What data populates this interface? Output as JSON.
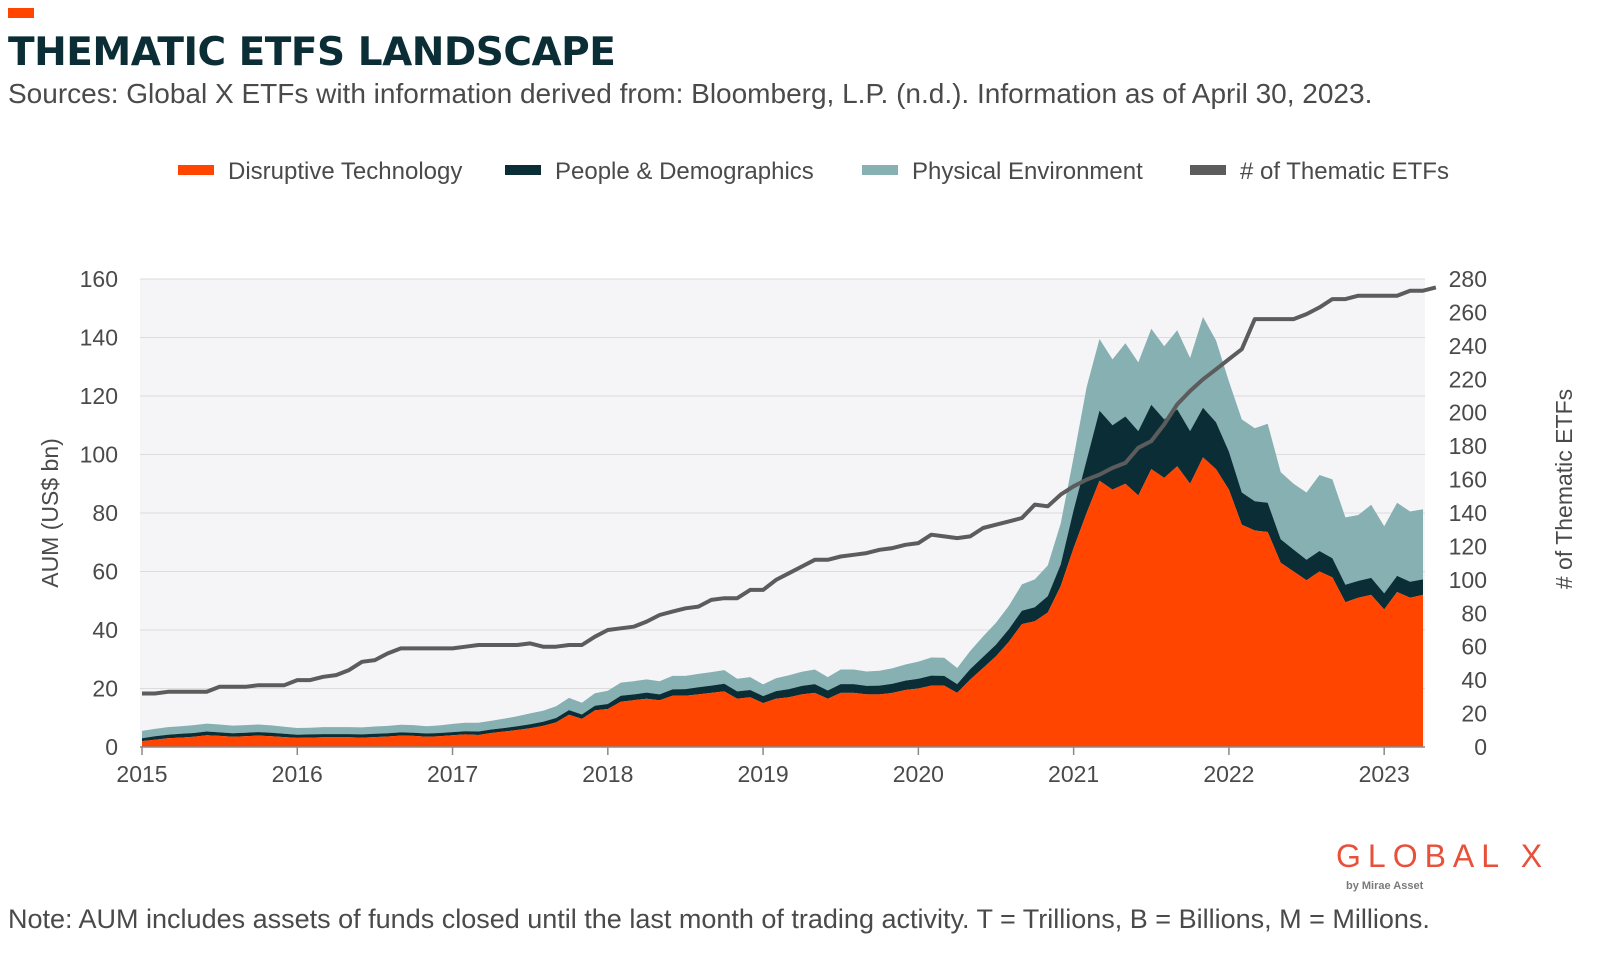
{
  "header": {
    "title": "THEMATIC ETFS LANDSCAPE",
    "subtitle": "Sources: Global X ETFs with information derived from: Bloomberg, L.P. (n.d.). Information as of April 30, 2023."
  },
  "footer": {
    "note": "Note: AUM includes assets of funds closed until the last month of trading activity. T = Trillions, B = Billions, M = Millions.",
    "logo_main": "GLOBAL X",
    "logo_sub": "by Mirae Asset"
  },
  "colors": {
    "accent": "#ff4500",
    "disruptive": "#ff4500",
    "people": "#0b2e36",
    "physical": "#86b0b1",
    "count_line": "#5c5c5c",
    "plot_bg": "#f5f5f7",
    "grid": "#dcdcdc"
  },
  "chart_data": {
    "type": "area",
    "stacked": true,
    "x_start": "2015-01",
    "x_end": "2023-04",
    "frequency": "monthly",
    "xlabel": "",
    "ylabel": "AUM (US$ bn)",
    "ylim": [
      0,
      160
    ],
    "yticks": [
      0,
      20,
      40,
      60,
      80,
      100,
      120,
      140,
      160
    ],
    "y2label": "# of Thematic ETFs",
    "y2lim": [
      0,
      280
    ],
    "y2ticks": [
      0,
      20,
      40,
      60,
      80,
      100,
      120,
      140,
      160,
      180,
      200,
      220,
      240,
      260,
      280
    ],
    "xticks": [
      "2015",
      "2016",
      "2017",
      "2018",
      "2019",
      "2020",
      "2021",
      "2022",
      "2023"
    ],
    "grid": "horizontal",
    "legend_position": "top",
    "series": [
      {
        "name": "Disruptive Technology",
        "kind": "area",
        "axis": "left",
        "color": "#ff4500",
        "values": [
          2,
          2.5,
          3,
          3.2,
          3.5,
          4,
          3.8,
          3.5,
          3.7,
          3.9,
          3.7,
          3.4,
          3.1,
          3.2,
          3.3,
          3.3,
          3.3,
          3.2,
          3.4,
          3.6,
          3.9,
          3.8,
          3.5,
          3.7,
          4,
          4.3,
          4.1,
          4.8,
          5.3,
          5.8,
          6.4,
          7.2,
          8.4,
          11,
          9.6,
          12.5,
          13,
          15.5,
          16,
          16.5,
          16,
          17.5,
          17.5,
          18,
          18.5,
          19,
          16.5,
          17,
          15,
          16.5,
          17,
          18,
          18.5,
          16.5,
          18.5,
          18.5,
          18,
          18,
          18.5,
          19.5,
          20,
          21,
          21,
          18.5,
          23,
          27,
          31,
          36,
          42,
          43,
          46,
          55,
          68,
          80,
          91,
          88,
          90,
          86,
          95,
          92,
          96,
          90,
          99,
          95,
          88,
          76,
          74,
          73.5,
          63,
          60,
          57,
          60,
          58,
          49.5,
          51,
          52,
          47,
          53,
          51,
          52,
          48
        ]
      },
      {
        "name": "People & Demographics",
        "kind": "area",
        "axis": "left",
        "color": "#0b2e36",
        "values": [
          1,
          1.2,
          1.2,
          1.3,
          1.3,
          1.3,
          1.2,
          1.2,
          1.2,
          1.2,
          1.2,
          1.1,
          1.1,
          1.1,
          1.1,
          1.1,
          1.1,
          1.1,
          1.1,
          1.1,
          1.1,
          1.1,
          1.1,
          1.1,
          1.1,
          1.1,
          1.2,
          1.2,
          1.2,
          1.3,
          1.4,
          1.4,
          1.5,
          1.6,
          1.5,
          1.6,
          1.7,
          2,
          2,
          2.1,
          2,
          2.2,
          2.3,
          2.4,
          2.5,
          2.6,
          2.5,
          2.5,
          2.4,
          2.6,
          2.8,
          2.9,
          3,
          2.8,
          3,
          3,
          2.9,
          3,
          3.1,
          3.2,
          3.3,
          3.4,
          3.3,
          3,
          3.6,
          3.8,
          4,
          4.3,
          4.6,
          4.8,
          5.6,
          7.4,
          13,
          18,
          24,
          22,
          23,
          22,
          22,
          20,
          19.5,
          18,
          17,
          16,
          13,
          11,
          10,
          10,
          8,
          7.5,
          7,
          7,
          6.5,
          6,
          5.8,
          5.8,
          5.5,
          5.5,
          5.5,
          5.3,
          5
        ]
      },
      {
        "name": "Physical Environment",
        "kind": "area",
        "axis": "left",
        "color": "#86b0b1",
        "values": [
          2.5,
          2.5,
          2.6,
          2.6,
          2.7,
          2.7,
          2.7,
          2.6,
          2.6,
          2.6,
          2.5,
          2.4,
          2.3,
          2.3,
          2.4,
          2.4,
          2.4,
          2.4,
          2.5,
          2.5,
          2.6,
          2.6,
          2.5,
          2.6,
          2.8,
          2.9,
          3,
          3,
          3.2,
          3.4,
          3.7,
          3.8,
          4,
          4.2,
          4,
          4.3,
          4.5,
          4.5,
          4.5,
          4.5,
          4.5,
          4.6,
          4.5,
          4.6,
          4.6,
          4.7,
          4.3,
          4.4,
          4,
          4.4,
          4.7,
          4.8,
          5,
          4.6,
          5,
          5,
          4.9,
          5.1,
          5.3,
          5.5,
          5.9,
          6.2,
          6.2,
          5.5,
          6.2,
          7,
          7.5,
          8,
          9,
          9.5,
          10.5,
          14,
          18,
          25,
          24.5,
          22.5,
          25,
          23.5,
          26,
          25,
          27,
          25,
          31,
          28,
          24,
          25,
          25,
          27,
          23,
          22.5,
          23,
          26,
          27,
          23,
          22.5,
          25,
          23,
          25,
          24,
          24,
          23
        ]
      },
      {
        "name": "# of Thematic ETFs",
        "kind": "line",
        "axis": "right",
        "color": "#5c5c5c",
        "values": [
          32,
          32,
          33,
          33,
          33,
          33,
          36,
          36,
          36,
          37,
          37,
          37,
          40,
          40,
          42,
          43,
          46,
          51,
          52,
          56,
          59,
          59,
          59,
          59,
          59,
          60,
          61,
          61,
          61,
          61,
          62,
          60,
          60,
          61,
          61,
          66,
          70,
          71,
          72,
          75,
          79,
          81,
          83,
          84,
          88,
          89,
          89,
          94,
          94,
          100,
          104,
          108,
          112,
          112,
          114,
          115,
          116,
          118,
          119,
          121,
          122,
          127,
          126,
          125,
          126,
          131,
          133,
          135,
          137,
          145,
          144,
          151,
          156,
          160,
          163,
          167,
          170,
          179,
          183,
          193,
          205,
          213,
          220,
          226,
          232,
          238,
          256,
          256,
          256,
          256,
          259,
          263,
          268,
          268,
          270,
          270,
          270,
          270,
          273,
          273,
          275
        ]
      }
    ]
  }
}
